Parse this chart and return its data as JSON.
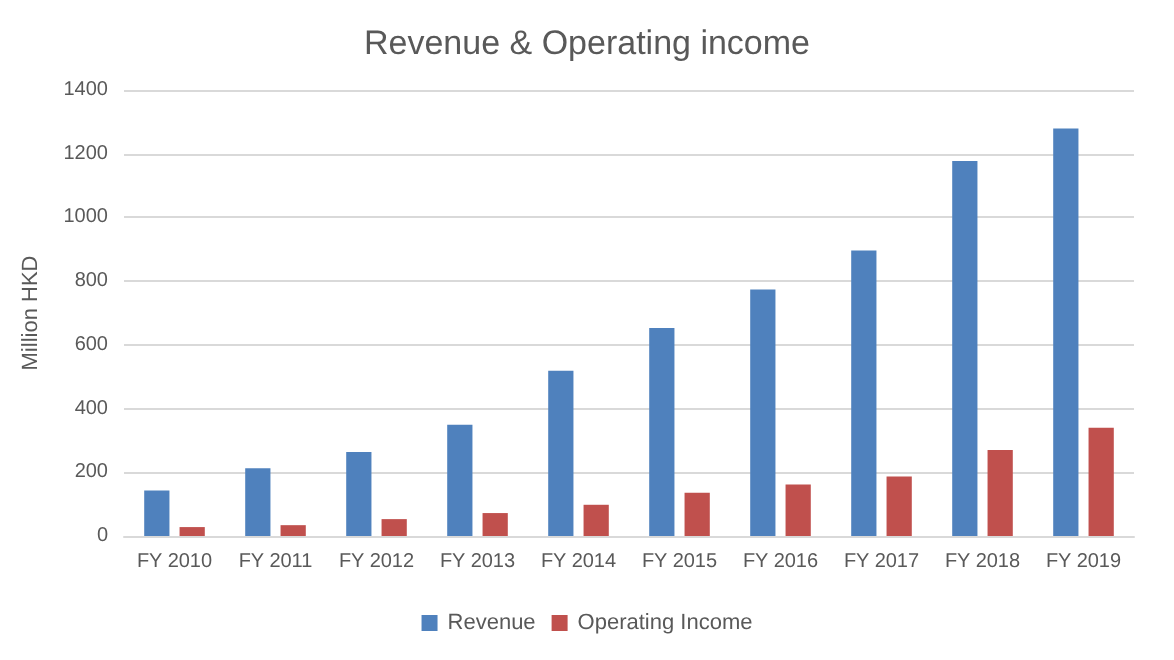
{
  "chart_data": {
    "type": "bar",
    "title": "Revenue & Operating income",
    "ylabel": "Million HKD",
    "categories": [
      "FY 2010",
      "FY 2011",
      "FY 2012",
      "FY 2013",
      "FY 2014",
      "FY 2015",
      "FY 2016",
      "FY 2017",
      "FY 2018",
      "FY 2019"
    ],
    "series": [
      {
        "name": "Revenue",
        "color": "#4f81bd",
        "values": [
          143,
          213,
          264,
          349,
          519,
          653,
          774,
          896,
          1177,
          1279
        ]
      },
      {
        "name": "Operating Income",
        "color": "#c0504d",
        "values": [
          28,
          34,
          53,
          72,
          98,
          136,
          162,
          187,
          270,
          340
        ]
      }
    ],
    "ylim": [
      0,
      1400
    ],
    "yticks": [
      0,
      200,
      400,
      600,
      800,
      1000,
      1200,
      1400
    ],
    "grid": "y",
    "legend": "bottom"
  }
}
